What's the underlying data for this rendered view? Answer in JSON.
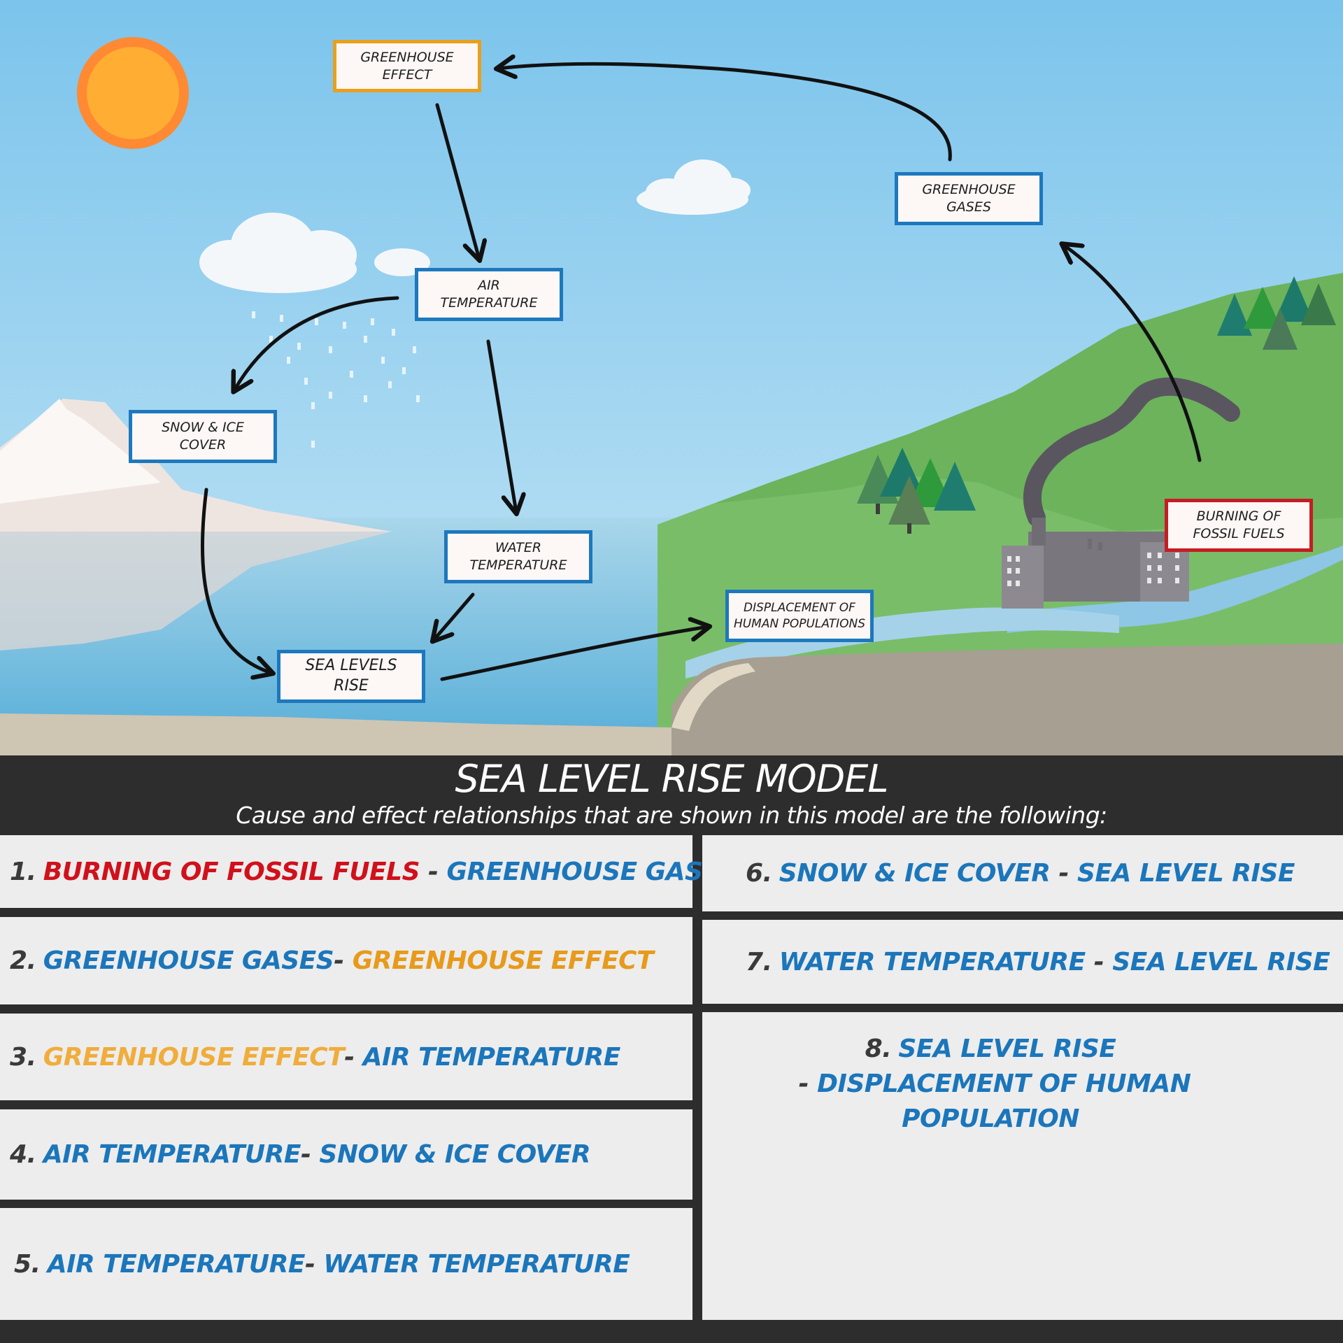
{
  "nodes": {
    "greenhouse_effect": "GREENHOUSE\nEFFECT",
    "air_temperature": "AIR\nTEMPERATURE",
    "greenhouse_gases": "GREENHOUSE\nGASES",
    "snow_ice_cover": "SNOW & ICE\nCOVER",
    "water_temperature": "WATER\nTEMPERATURE",
    "displacement": "DISPLACEMENT OF\nHUMAN POPULATIONS",
    "sea_levels_rise": "SEA LEVELS\nRISE",
    "burning_fossil_fuels": "BURNING OF\nFOSSIL FUELS"
  },
  "banner": {
    "title": "SEA LEVEL RISE MODEL",
    "subtitle": "Cause and effect relationships that are shown in this model are the following:"
  },
  "relationships": [
    {
      "num": "1.",
      "cause": "BURNING OF FOSSIL FUELS",
      "sep": " - ",
      "effect": "GREENHOUSE GASES"
    },
    {
      "num": "2.",
      "cause": "GREENHOUSE GASES",
      "sep": "- ",
      "effect": "GREENHOUSE EFFECT"
    },
    {
      "num": "3.",
      "cause": "GREENHOUSE EFFECT",
      "sep": "- ",
      "effect": "AIR TEMPERATURE"
    },
    {
      "num": "4.",
      "cause": "AIR TEMPERATURE",
      "sep": "- ",
      "effect": "SNOW & ICE COVER"
    },
    {
      "num": "5.",
      "cause": "AIR TEMPERATURE",
      "sep": "- ",
      "effect": "WATER TEMPERATURE"
    },
    {
      "num": "6.",
      "cause": "SNOW & ICE COVER",
      "sep": " - ",
      "effect": "SEA LEVEL RISE"
    },
    {
      "num": "7.",
      "cause": "WATER TEMPERATURE",
      "sep": " - ",
      "effect": "SEA LEVEL RISE"
    },
    {
      "num": "8.",
      "cause": "SEA LEVEL RISE",
      "sep": " - ",
      "effect": "DISPLACEMENT OF HUMAN POPULATION"
    }
  ],
  "colors": {
    "node_border_blue": "#1d78bd",
    "node_border_orange": "#e8a01d",
    "node_border_red": "#c61c23",
    "text_blue": "#1b76bb",
    "text_red": "#d0111b",
    "text_orange": "#e79a1b",
    "banner_bg": "#2d2d2d",
    "sun": "#ffae33"
  }
}
